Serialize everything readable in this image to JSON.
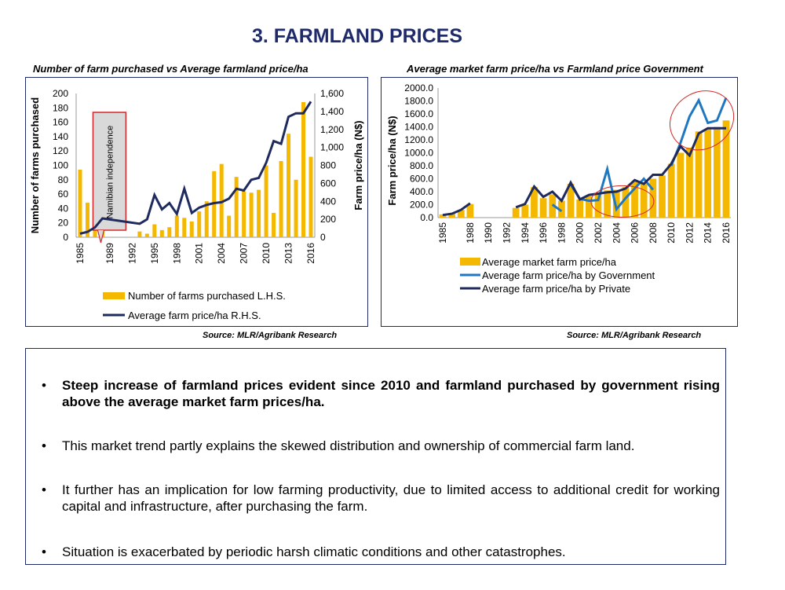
{
  "page": {
    "title": "3. FARMLAND PRICES",
    "bullet_symbol": "•"
  },
  "colors": {
    "title": "#1f2a6b",
    "bar": "#f5b800",
    "government_line": "#1f77c0",
    "private_line": "#1f2a5e",
    "annotation_red": "#d62728",
    "box_border": "#1f2a6b"
  },
  "chart_data": [
    {
      "type": "bar",
      "title": "Number of farm purchased vs Average farmland price/ha",
      "ylabel": "Number of farms purchased",
      "y2label": "Farm price/ha (N$)",
      "ylim": [
        0,
        200
      ],
      "y2lim": [
        0,
        1600
      ],
      "yticks": [
        "0",
        "20",
        "40",
        "60",
        "80",
        "100",
        "120",
        "140",
        "160",
        "180",
        "200"
      ],
      "y2ticks": [
        "0",
        "200",
        "400",
        "600",
        "800",
        "1,000",
        "1,200",
        "1,400",
        "1,600"
      ],
      "xtick_labels": [
        "1985",
        "1989",
        "1992",
        "1995",
        "1998",
        "2001",
        "2004",
        "2007",
        "2010",
        "2013",
        "2016"
      ],
      "annotation": "Namibian independence",
      "source": "Source: MLR/Agribank Research",
      "series": [
        {
          "name": "Number of farms purchased  L.H.S.",
          "axis": "left",
          "type": "bar",
          "points": [
            [
              1985,
              94
            ],
            [
              1986,
              48
            ],
            [
              1987,
              22
            ],
            [
              1988,
              30
            ],
            [
              1993,
              8
            ],
            [
              1994,
              5
            ],
            [
              1995,
              18
            ],
            [
              1996,
              10
            ],
            [
              1997,
              14
            ],
            [
              1998,
              30
            ],
            [
              1999,
              27
            ],
            [
              2000,
              22
            ],
            [
              2001,
              36
            ],
            [
              2002,
              50
            ],
            [
              2003,
              92
            ],
            [
              2004,
              102
            ],
            [
              2005,
              30
            ],
            [
              2006,
              84
            ],
            [
              2007,
              64
            ],
            [
              2008,
              62
            ],
            [
              2009,
              66
            ],
            [
              2010,
              100
            ],
            [
              2011,
              34
            ],
            [
              2012,
              106
            ],
            [
              2013,
              144
            ],
            [
              2014,
              80
            ],
            [
              2015,
              188
            ],
            [
              2016,
              112
            ]
          ]
        },
        {
          "name": "Average farm price/ha  R.H.S.",
          "axis": "right",
          "type": "line",
          "points": [
            [
              1985,
              40
            ],
            [
              1986,
              60
            ],
            [
              1987,
              110
            ],
            [
              1988,
              210
            ],
            [
              1993,
              150
            ],
            [
              1994,
              200
            ],
            [
              1995,
              470
            ],
            [
              1996,
              310
            ],
            [
              1997,
              380
            ],
            [
              1998,
              260
            ],
            [
              1999,
              540
            ],
            [
              2000,
              270
            ],
            [
              2001,
              330
            ],
            [
              2002,
              360
            ],
            [
              2003,
              380
            ],
            [
              2004,
              390
            ],
            [
              2005,
              430
            ],
            [
              2006,
              540
            ],
            [
              2007,
              520
            ],
            [
              2008,
              640
            ],
            [
              2009,
              660
            ],
            [
              2010,
              830
            ],
            [
              2011,
              1070
            ],
            [
              2012,
              1040
            ],
            [
              2013,
              1340
            ],
            [
              2014,
              1380
            ],
            [
              2015,
              1380
            ],
            [
              2016,
              1510
            ]
          ]
        }
      ]
    },
    {
      "type": "bar",
      "title": "Average market farm price/ha vs Farmland price Government",
      "ylabel": "Farm price/ha (N$)",
      "ylim": [
        0,
        2000
      ],
      "yticks": [
        "0.0",
        "200.0",
        "400.0",
        "600.0",
        "800.0",
        "1000.0",
        "1200.0",
        "1400.0",
        "1600.0",
        "1800.0",
        "2000.0"
      ],
      "xtick_labels": [
        "1985",
        "1988",
        "1990",
        "1992",
        "1994",
        "1996",
        "1998",
        "2000",
        "2002",
        "2004",
        "2006",
        "2008",
        "2010",
        "2012",
        "2014",
        "2016"
      ],
      "source": "Source: MLR/Agribank Research",
      "series": [
        {
          "name": "Average market farm price/ha",
          "type": "bar",
          "points": [
            [
              1985,
              50
            ],
            [
              1986,
              60
            ],
            [
              1987,
              120
            ],
            [
              1988,
              210
            ],
            [
              1993,
              150
            ],
            [
              1994,
              200
            ],
            [
              1995,
              470
            ],
            [
              1996,
              300
            ],
            [
              1997,
              360
            ],
            [
              1998,
              260
            ],
            [
              1999,
              520
            ],
            [
              2000,
              280
            ],
            [
              2001,
              330
            ],
            [
              2002,
              380
            ],
            [
              2003,
              420
            ],
            [
              2004,
              430
            ],
            [
              2005,
              470
            ],
            [
              2006,
              560
            ],
            [
              2007,
              520
            ],
            [
              2008,
              600
            ],
            [
              2009,
              650
            ],
            [
              2010,
              830
            ],
            [
              2011,
              1000
            ],
            [
              2012,
              1080
            ],
            [
              2013,
              1330
            ],
            [
              2014,
              1370
            ],
            [
              2015,
              1400
            ],
            [
              2016,
              1500
            ]
          ]
        },
        {
          "name": "Average farm price/ha by Government",
          "type": "line",
          "segments": [
            [
              [
                1997,
                200
              ],
              [
                1998,
                100
              ]
            ],
            [
              [
                1999,
                510
              ],
              [
                2000,
                290
              ],
              [
                2001,
                260
              ],
              [
                2002,
                270
              ],
              [
                2003,
                750
              ],
              [
                2004,
                130
              ],
              [
                2005,
                300
              ],
              [
                2006,
                450
              ],
              [
                2007,
                600
              ],
              [
                2008,
                430
              ]
            ],
            [
              [
                2010,
                800
              ],
              [
                2011,
                1150
              ],
              [
                2012,
                1560
              ],
              [
                2013,
                1810
              ],
              [
                2014,
                1460
              ],
              [
                2015,
                1500
              ],
              [
                2016,
                1850
              ]
            ]
          ]
        },
        {
          "name": "Average farm price/ha by Private",
          "type": "line",
          "segments": [
            [
              [
                1985,
                40
              ],
              [
                1986,
                60
              ],
              [
                1987,
                120
              ],
              [
                1988,
                220
              ]
            ],
            [
              [
                1993,
                160
              ],
              [
                1994,
                210
              ],
              [
                1995,
                480
              ],
              [
                1996,
                320
              ],
              [
                1997,
                400
              ],
              [
                1998,
                260
              ],
              [
                1999,
                540
              ],
              [
                2000,
                280
              ],
              [
                2001,
                350
              ],
              [
                2002,
                370
              ],
              [
                2003,
                390
              ],
              [
                2004,
                400
              ],
              [
                2005,
                450
              ],
              [
                2006,
                580
              ],
              [
                2007,
                520
              ],
              [
                2008,
                660
              ],
              [
                2009,
                660
              ],
              [
                2010,
                830
              ],
              [
                2011,
                1100
              ],
              [
                2012,
                960
              ],
              [
                2013,
                1300
              ],
              [
                2014,
                1380
              ],
              [
                2015,
                1380
              ],
              [
                2016,
                1380
              ]
            ]
          ]
        }
      ]
    }
  ],
  "bullets": [
    "Steep increase of farmland prices evident  since 2010 and farmland purchased by government  rising above the average market farm prices/ha.",
    "This market trend partly explains  the skewed distribution and ownership of commercial farm land.",
    " It further has an implication for low farming productivity, due to limited access to additional credit for working capital and infrastructure, after purchasing the farm.",
    "Situation is  exacerbated by periodic harsh climatic conditions and  other catastrophes."
  ]
}
